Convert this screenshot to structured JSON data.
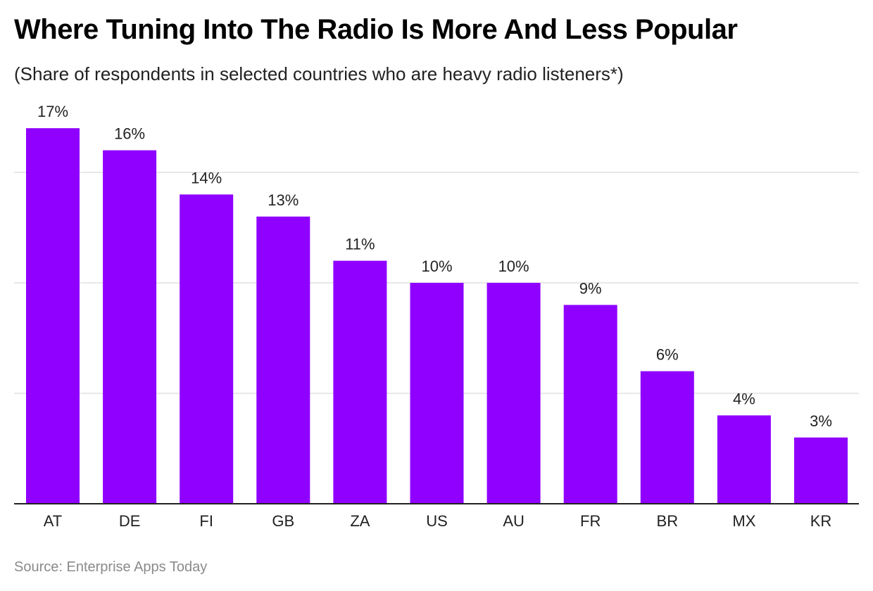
{
  "chart_data": {
    "type": "bar",
    "title": "Where Tuning Into The Radio Is More And Less Popular",
    "subtitle": "(Share of respondents in selected countries who are heavy radio listeners*)",
    "source": "Source: Enterprise Apps Today",
    "categories": [
      "AT",
      "DE",
      "FI",
      "GB",
      "ZA",
      "US",
      "AU",
      "FR",
      "BR",
      "MX",
      "KR"
    ],
    "values": [
      17,
      16,
      14,
      13,
      11,
      10,
      10,
      9,
      6,
      4,
      3
    ],
    "value_labels": [
      "17%",
      "16%",
      "14%",
      "13%",
      "11%",
      "10%",
      "10%",
      "9%",
      "6%",
      "4%",
      "3%"
    ],
    "unit": "%",
    "ylim": [
      0,
      17
    ],
    "gridlines": [
      5,
      10,
      15
    ],
    "grid": true,
    "xlabel": "",
    "ylabel": "",
    "colors": {
      "bar": "#8f00ff",
      "grid": "#e0e0e0",
      "axis": "#222222"
    }
  }
}
